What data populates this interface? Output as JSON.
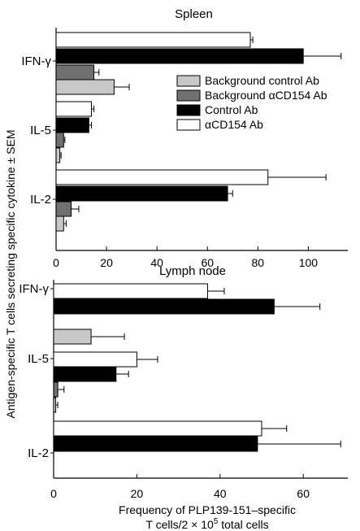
{
  "chart_data": [
    {
      "type": "bar",
      "orientation": "horizontal",
      "title": "Spleen",
      "xlim": [
        0,
        115
      ],
      "xticks": [
        0,
        20,
        40,
        60,
        80,
        100
      ],
      "categories": [
        "IFN-γ",
        "IL-5",
        "IL-2"
      ],
      "series": [
        {
          "name": "αCD154 Ab",
          "color": "#ffffff",
          "values": [
            77,
            14,
            84
          ],
          "errors": [
            1,
            1,
            23
          ]
        },
        {
          "name": "Control Ab",
          "color": "#000000",
          "values": [
            98,
            13,
            68
          ],
          "errors": [
            15,
            1,
            2
          ]
        },
        {
          "name": "Background αCD154 Ab",
          "color": "#707070",
          "values": [
            15,
            3,
            6
          ],
          "errors": [
            2,
            0.5,
            3
          ]
        },
        {
          "name": "Background control Ab",
          "color": "#c8c8c8",
          "values": [
            23,
            1.5,
            3
          ],
          "errors": [
            6,
            0.5,
            1
          ]
        }
      ],
      "legend": {
        "position": "right",
        "order": [
          "Background control Ab",
          "Background αCD154 Ab",
          "Control Ab",
          "αCD154 Ab"
        ]
      }
    },
    {
      "type": "bar",
      "orientation": "horizontal",
      "title": "Lymph node",
      "xlim": [
        0,
        70
      ],
      "xticks": [
        0,
        20,
        40,
        60
      ],
      "categories": [
        "IFN-γ",
        "IL-5",
        "IL-2"
      ],
      "series": [
        {
          "name": "αCD154 Ab",
          "color": "#ffffff",
          "values": [
            37,
            20,
            50
          ],
          "errors": [
            4,
            5,
            6
          ]
        },
        {
          "name": "Control Ab",
          "color": "#000000",
          "values": [
            53,
            15,
            49
          ],
          "errors": [
            11,
            3,
            20
          ]
        },
        {
          "name": "Background αCD154 Ab",
          "color": "#707070",
          "values": [
            null,
            1,
            null
          ],
          "errors": [
            null,
            1.5,
            null
          ]
        },
        {
          "name": "Background control Ab",
          "color": "#c8c8c8",
          "values": [
            9,
            0.5,
            null
          ],
          "errors": [
            8,
            0.5,
            null
          ]
        }
      ]
    }
  ],
  "axis_labels": {
    "ylabel": "Antigen-specific T cells secreting specific cytokine ± SEM",
    "xlabel_line1": "Frequency of PLP139-151–specific",
    "xlabel_line2_prefix": "T cells/2 × 10",
    "xlabel_line2_sup": "5",
    "xlabel_line2_suffix": " total cells"
  }
}
